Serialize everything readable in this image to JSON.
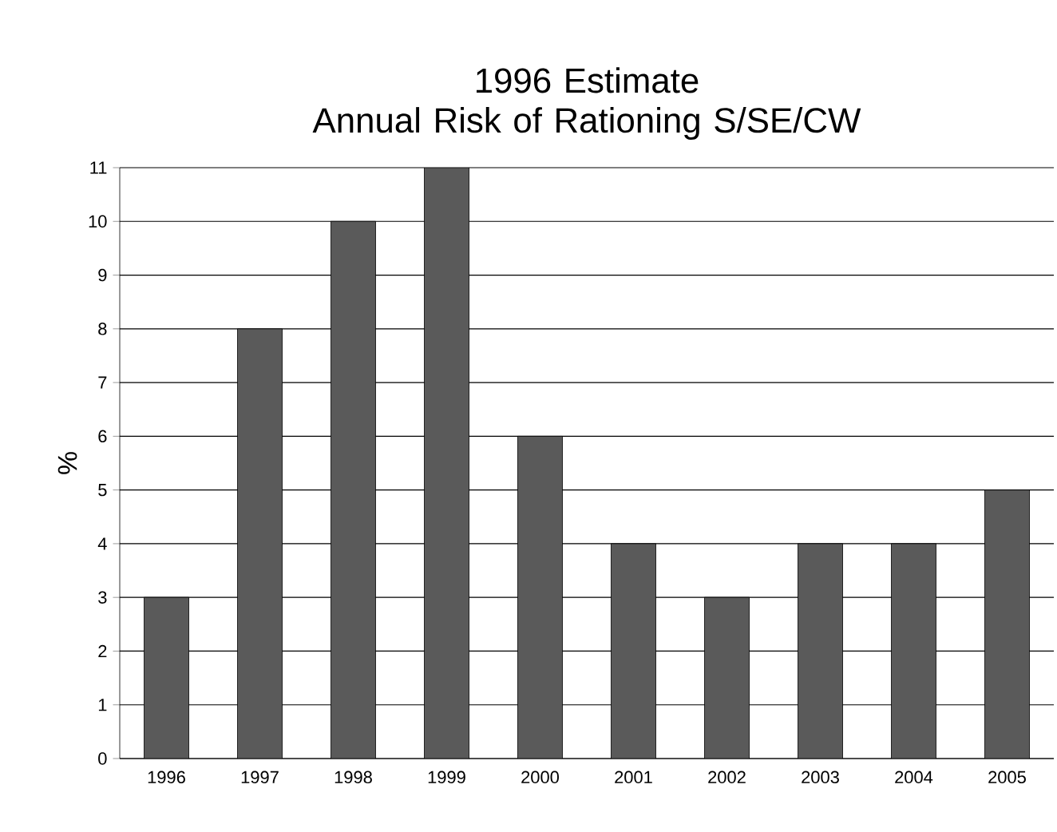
{
  "chart_data": {
    "type": "bar",
    "title": "1996 Estimate\nAnnual Risk of Rationing S/SE/CW",
    "ylabel": "%",
    "categories": [
      "1996",
      "1997",
      "1998",
      "1999",
      "2000",
      "2001",
      "2002",
      "2003",
      "2004",
      "2005"
    ],
    "values": [
      3,
      8,
      10,
      11,
      6,
      4,
      3,
      4,
      4,
      5
    ],
    "color": "#5a5a5a",
    "ylim": [
      0,
      11
    ],
    "yticks": [
      0,
      1,
      2,
      3,
      4,
      5,
      6,
      7,
      8,
      9,
      10,
      11
    ],
    "grid": "y"
  }
}
